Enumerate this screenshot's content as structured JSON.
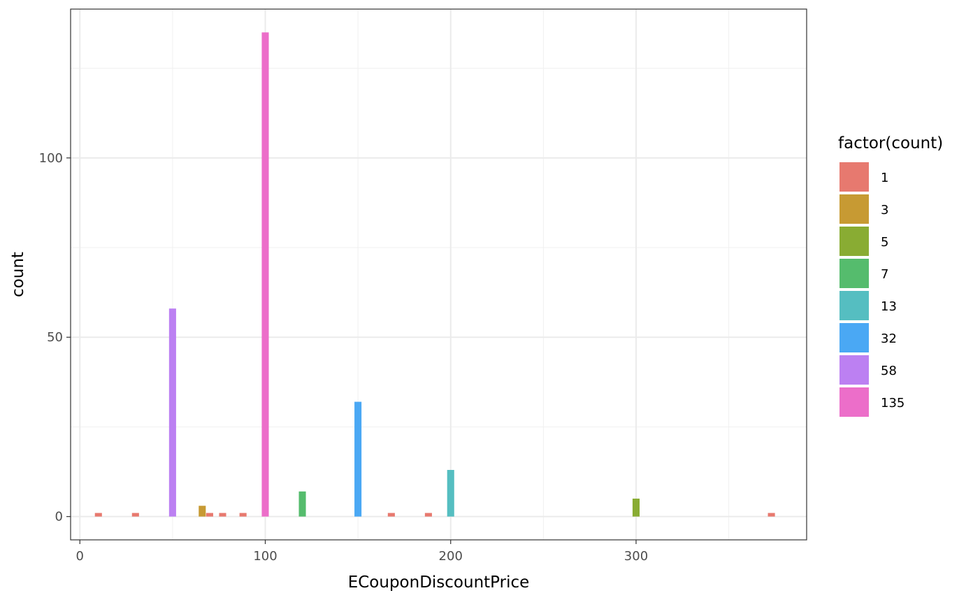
{
  "chart_data": {
    "type": "bar",
    "xlabel": "ECouponDiscountPrice",
    "ylabel": "count",
    "xlim": [
      -5,
      392
    ],
    "ylim": [
      -6.5,
      141.5
    ],
    "x_ticks": [
      0,
      100,
      200,
      300
    ],
    "x_minor_ticks": [
      50,
      150,
      250,
      350
    ],
    "y_ticks": [
      0,
      50,
      100
    ],
    "y_minor_ticks": [
      25,
      75,
      125
    ],
    "bar_width": 3.8,
    "grid": true,
    "legend_position": "right",
    "legend_title": "factor(count)",
    "legend": [
      {
        "label": "1",
        "color": "#E7796F"
      },
      {
        "label": "3",
        "color": "#C79A33"
      },
      {
        "label": "5",
        "color": "#89AC33"
      },
      {
        "label": "7",
        "color": "#55BC6D"
      },
      {
        "label": "13",
        "color": "#55BEC1"
      },
      {
        "label": "32",
        "color": "#4AA8F4"
      },
      {
        "label": "58",
        "color": "#BC80F2"
      },
      {
        "label": "135",
        "color": "#EC6EC9"
      }
    ],
    "bars": [
      {
        "x": 10,
        "count": 1
      },
      {
        "x": 30,
        "count": 1
      },
      {
        "x": 50,
        "count": 58
      },
      {
        "x": 66,
        "count": 3
      },
      {
        "x": 70,
        "count": 1
      },
      {
        "x": 77,
        "count": 1
      },
      {
        "x": 88,
        "count": 1
      },
      {
        "x": 100,
        "count": 135
      },
      {
        "x": 120,
        "count": 7
      },
      {
        "x": 150,
        "count": 32
      },
      {
        "x": 168,
        "count": 1
      },
      {
        "x": 188,
        "count": 1
      },
      {
        "x": 200,
        "count": 13
      },
      {
        "x": 300,
        "count": 5
      },
      {
        "x": 373,
        "count": 1
      }
    ]
  }
}
